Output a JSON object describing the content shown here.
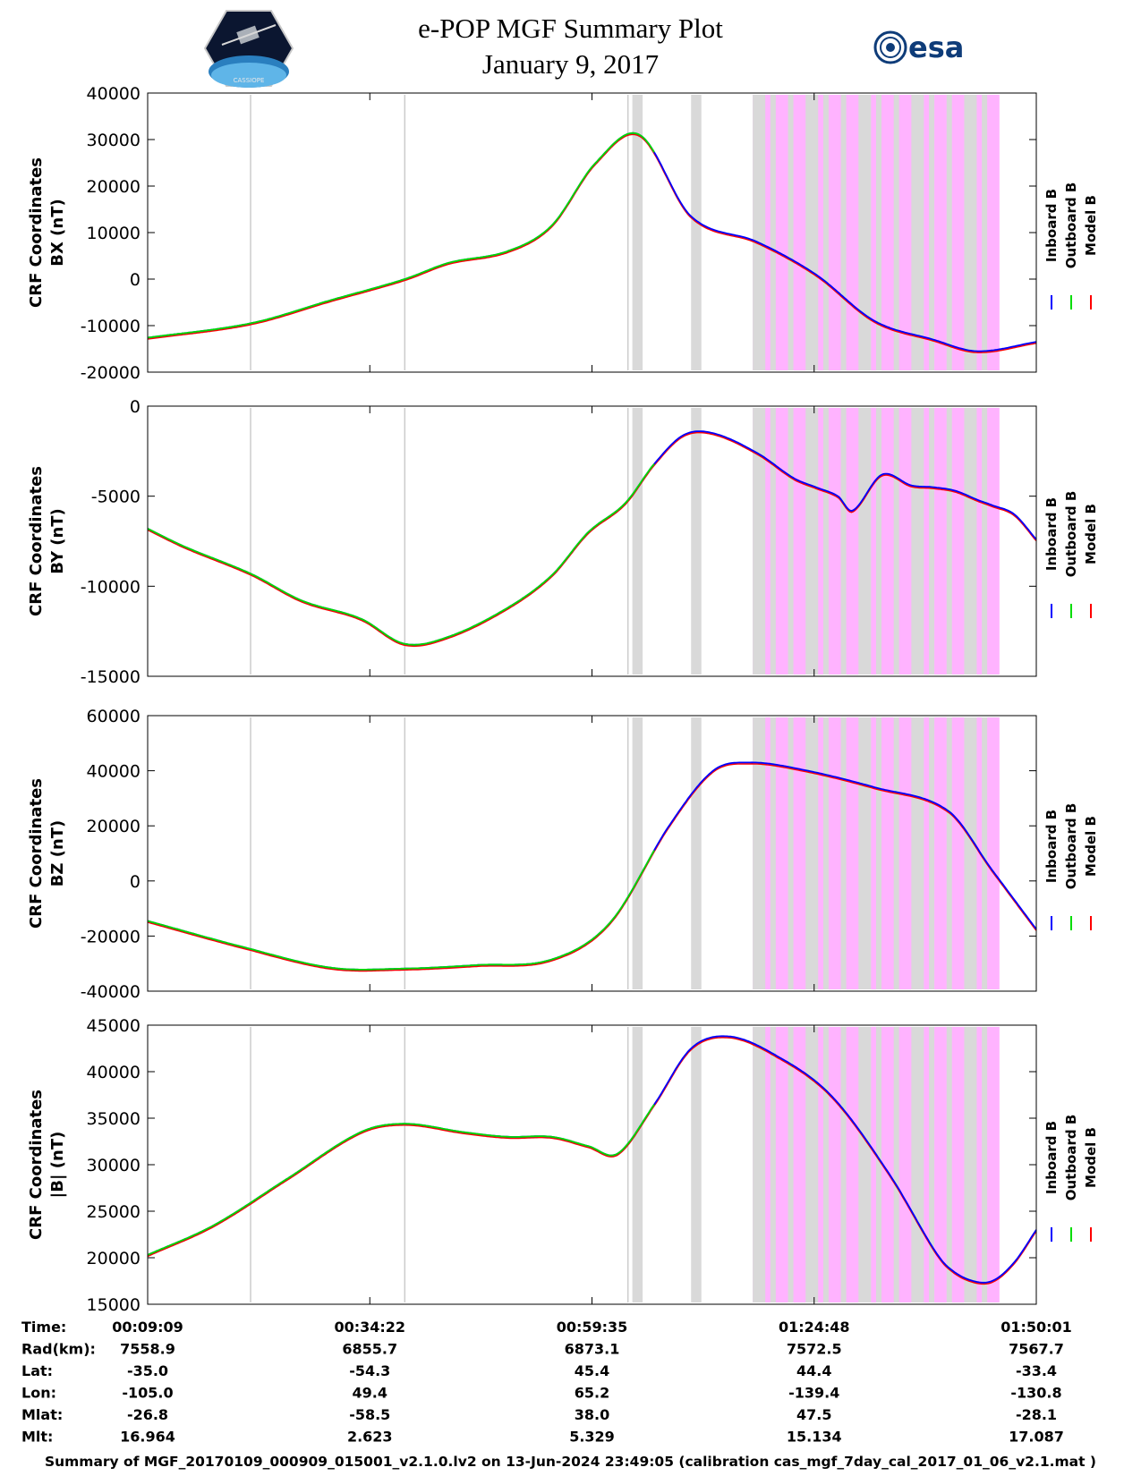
{
  "header": {
    "title": "e-POP MGF Summary Plot",
    "date": "January 9, 2017",
    "logo_left_text": "CASSIOPE",
    "logo_right_text": "esa"
  },
  "colors": {
    "inboard": "#0000ff",
    "outboard": "#00dd00",
    "model": "#ff0000",
    "shade_gray": "#d9d9d9",
    "shade_pink": "#ffb3ff"
  },
  "chart_data": {
    "type": "line",
    "x_range_seconds": [
      549,
      6601
    ],
    "tick_times": [
      "00:09:09",
      "00:34:22",
      "00:59:35",
      "01:24:48",
      "01:50:01"
    ],
    "ephemeris": [
      {
        "label": "Time:",
        "values": [
          "00:09:09",
          "00:34:22",
          "00:59:35",
          "01:24:48",
          "01:50:01"
        ]
      },
      {
        "label": "Rad(km):",
        "values": [
          "7558.9",
          "6855.7",
          "6873.1",
          "7572.5",
          "7567.7"
        ]
      },
      {
        "label": "Lat:",
        "values": [
          "-35.0",
          "-54.3",
          "45.4",
          "44.4",
          "-33.4"
        ]
      },
      {
        "label": "Lon:",
        "values": [
          "-105.0",
          "49.4",
          "65.2",
          "-139.4",
          "-130.8"
        ]
      },
      {
        "label": "Mlat:",
        "values": [
          "-26.8",
          "-58.5",
          "38.0",
          "47.5",
          "-28.1"
        ]
      },
      {
        "label": "Mlt:",
        "values": [
          "16.964",
          "2.623",
          "5.329",
          "15.134",
          "17.087"
        ]
      }
    ],
    "legend": [
      "Inboard B",
      "Outboard B",
      "Model B"
    ],
    "vertical_lines_seconds": [
      1250,
      2300,
      3820
    ],
    "gray_bands_seconds": [
      [
        3850,
        3920
      ],
      [
        4250,
        4320
      ]
    ],
    "shaded_region_seconds": [
      4670,
      6350
    ],
    "outboard_end_seconds": 4000,
    "panels": [
      {
        "id": "bx",
        "ylabel": [
          "CRF Coordinates",
          "BX (nT)"
        ],
        "ylim": [
          -20000,
          40000
        ],
        "yticks": [
          -20000,
          -10000,
          0,
          10000,
          20000,
          30000,
          40000
        ],
        "x": [
          549,
          1250,
          1800,
          2300,
          2600,
          3000,
          3300,
          3600,
          3900,
          4250,
          4700,
          5100,
          5500,
          5900,
          6200,
          6601
        ],
        "values": [
          -12600,
          -9500,
          -4500,
          0,
          3500,
          6000,
          11500,
          25000,
          31000,
          13500,
          8000,
          1000,
          -9000,
          -13000,
          -15500,
          -13500
        ]
      },
      {
        "id": "by",
        "ylabel": [
          "CRF Coordinates",
          "BY (nT)"
        ],
        "ylim": [
          -15000,
          0
        ],
        "yticks": [
          -15000,
          -10000,
          -5000,
          0
        ],
        "x": [
          549,
          800,
          1250,
          1600,
          2000,
          2300,
          2600,
          3000,
          3300,
          3550,
          3800,
          4000,
          4200,
          4400,
          4700,
          4950,
          5100,
          5250,
          5350,
          5550,
          5750,
          5900,
          6050,
          6200,
          6300,
          6450,
          6601
        ],
        "values": [
          -6800,
          -7800,
          -9300,
          -10800,
          -11800,
          -13200,
          -12800,
          -11200,
          -9400,
          -7000,
          -5400,
          -3200,
          -1600,
          -1500,
          -2600,
          -4000,
          -4500,
          -5000,
          -5800,
          -3800,
          -4400,
          -4500,
          -4700,
          -5200,
          -5500,
          -6000,
          -7400
        ]
      },
      {
        "id": "bz",
        "ylabel": [
          "CRF Coordinates",
          "BZ (nT)"
        ],
        "ylim": [
          -40000,
          60000
        ],
        "yticks": [
          -40000,
          -20000,
          0,
          20000,
          40000,
          60000
        ],
        "x": [
          549,
          1200,
          1800,
          2300,
          2800,
          3300,
          3700,
          4100,
          4400,
          4650,
          5000,
          5500,
          6000,
          6300,
          6601
        ],
        "values": [
          -14500,
          -24000,
          -31500,
          -31800,
          -30500,
          -28500,
          -15000,
          20000,
          40000,
          43000,
          40500,
          34000,
          25500,
          4000,
          -17500
        ]
      },
      {
        "id": "b",
        "ylabel": [
          "CRF Coordinates",
          "|B| (nT)"
        ],
        "ylim": [
          15000,
          45000
        ],
        "yticks": [
          15000,
          20000,
          25000,
          30000,
          35000,
          40000,
          45000
        ],
        "x": [
          549,
          1000,
          1500,
          2000,
          2300,
          2700,
          3000,
          3300,
          3550,
          3750,
          4000,
          4250,
          4500,
          4800,
          5200,
          5600,
          5900,
          6000,
          6150,
          6300,
          6450,
          6601
        ],
        "values": [
          20300,
          23500,
          28500,
          33500,
          34400,
          33500,
          33000,
          33000,
          32000,
          31200,
          36500,
          42500,
          43800,
          42000,
          37500,
          29000,
          21000,
          19000,
          17600,
          17500,
          19500,
          23000
        ]
      }
    ]
  },
  "footer": {
    "text": "Summary of MGF_20170109_000909_015001_v2.1.0.lv2 on 13-Jun-2024 23:49:05 (calibration cas_mgf_7day_cal_2017_01_06_v2.1.mat )"
  }
}
